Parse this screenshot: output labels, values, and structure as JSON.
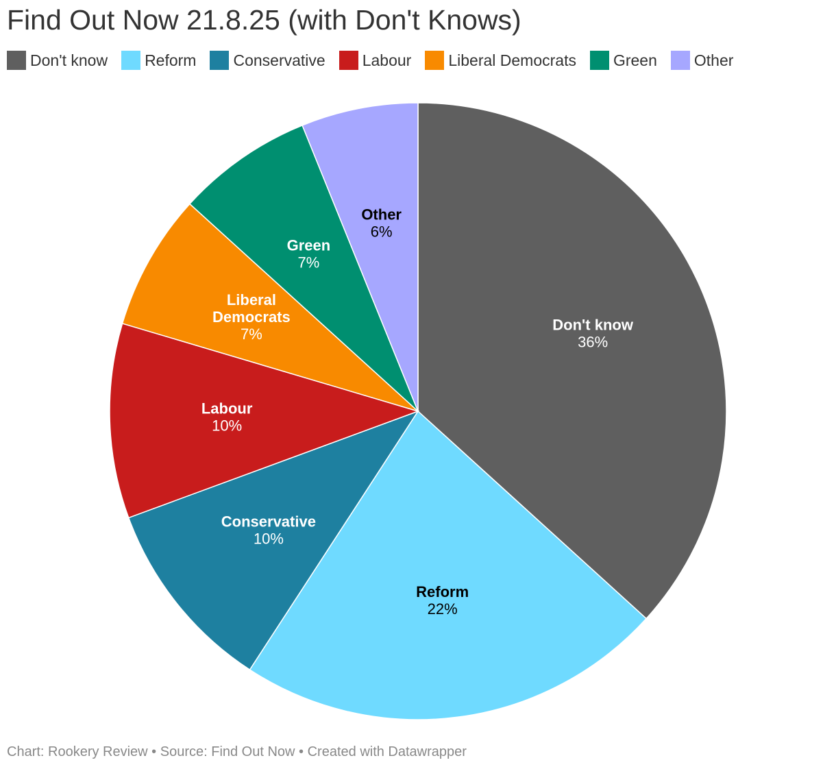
{
  "chart_data": {
    "type": "pie",
    "title": "Find Out Now 21.8.25 (with Don't Knows)",
    "slices": [
      {
        "name": "Don't know",
        "label_lines": [
          "Don't know"
        ],
        "value": 36,
        "value_label": "36%",
        "color": "#5f5f5f",
        "text_color": "#ffffff"
      },
      {
        "name": "Reform",
        "label_lines": [
          "Reform"
        ],
        "value": 22,
        "value_label": "22%",
        "color": "#6fdaff",
        "text_color": "#000000"
      },
      {
        "name": "Conservative",
        "label_lines": [
          "Conservative"
        ],
        "value": 10,
        "value_label": "10%",
        "color": "#1e80a0",
        "text_color": "#ffffff"
      },
      {
        "name": "Labour",
        "label_lines": [
          "Labour"
        ],
        "value": 10,
        "value_label": "10%",
        "color": "#c81c1c",
        "text_color": "#ffffff"
      },
      {
        "name": "Liberal Democrats",
        "label_lines": [
          "Liberal",
          "Democrats"
        ],
        "value": 7,
        "value_label": "7%",
        "color": "#f88a00",
        "text_color": "#ffffff"
      },
      {
        "name": "Green",
        "label_lines": [
          "Green"
        ],
        "value": 7,
        "value_label": "7%",
        "color": "#008f70",
        "text_color": "#ffffff"
      },
      {
        "name": "Other",
        "label_lines": [
          "Other"
        ],
        "value": 6,
        "value_label": "6%",
        "color": "#a6a7ff",
        "text_color": "#000000"
      }
    ],
    "legend_position": "top-left"
  },
  "footer": "Chart: Rookery Review • Source: Find Out Now • Created with Datawrapper"
}
